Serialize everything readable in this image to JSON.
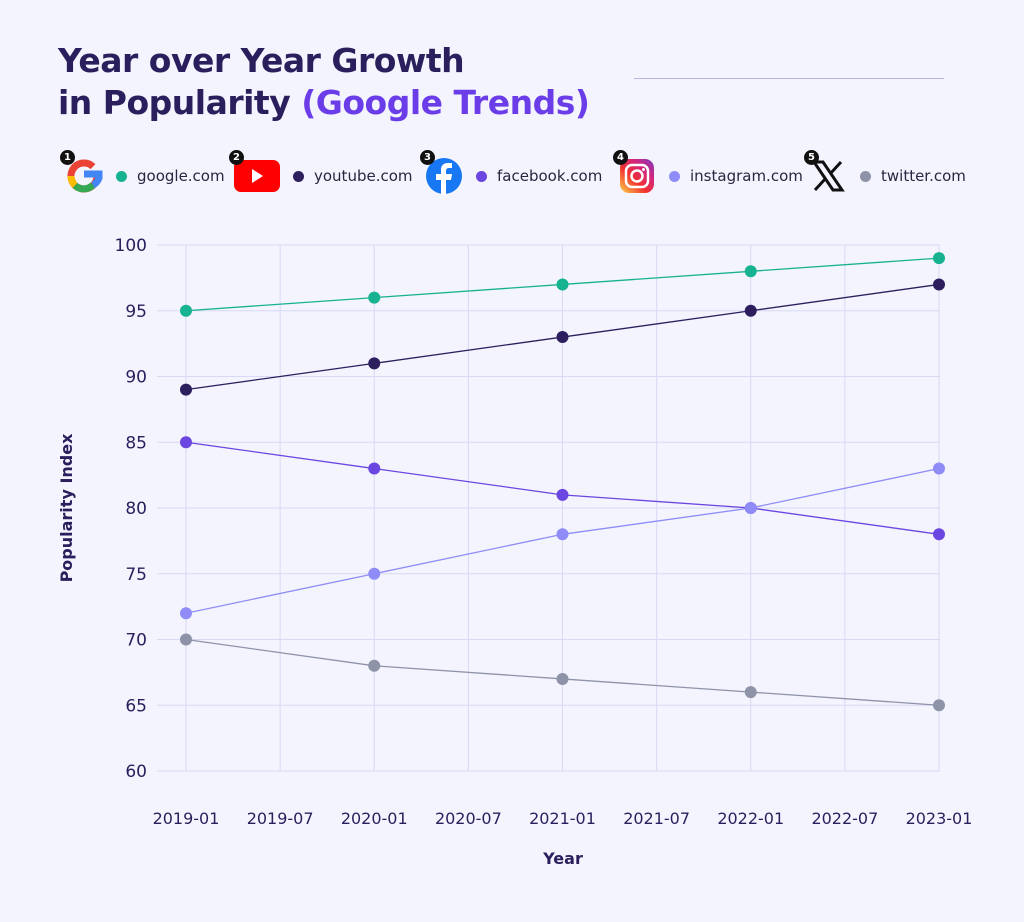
{
  "title": {
    "line1": "Year over Year Growth",
    "line2_plain": "in Popularity ",
    "line2_accent": "(Google Trends)"
  },
  "colors": {
    "title": "#2a1f5c",
    "accent": "#6a3de8",
    "background": "#f3f4fd"
  },
  "legend": [
    {
      "rank": "1",
      "icon": "google-logo-icon",
      "label": "google.com",
      "color": "#17b28f"
    },
    {
      "rank": "2",
      "icon": "youtube-logo-icon",
      "label": "youtube.com",
      "color": "#2d1f5e"
    },
    {
      "rank": "3",
      "icon": "facebook-logo-icon",
      "label": "facebook.com",
      "color": "#6b46e0"
    },
    {
      "rank": "4",
      "icon": "instagram-logo-icon",
      "label": "instagram.com",
      "color": "#8f8cf8"
    },
    {
      "rank": "5",
      "icon": "x-logo-icon",
      "label": "twitter.com",
      "color": "#8e93a8"
    }
  ],
  "chart_data": {
    "type": "line",
    "xlabel": "Year",
    "ylabel": "Popularity Index",
    "x": [
      "2019-01",
      "2020-01",
      "2021-01",
      "2022-01",
      "2023-01"
    ],
    "x_tick_labels": [
      "2019-01",
      "2019-07",
      "2020-01",
      "2020-07",
      "2021-01",
      "2021-07",
      "2022-01",
      "2022-07",
      "2023-01"
    ],
    "y_ticks": [
      60,
      65,
      70,
      75,
      80,
      85,
      90,
      95,
      100
    ],
    "ylim": [
      60,
      100
    ],
    "grid": true,
    "legend_position": "top",
    "series": [
      {
        "name": "google.com",
        "color": "#17b28f",
        "values": [
          95,
          96,
          97,
          98,
          99
        ]
      },
      {
        "name": "youtube.com",
        "color": "#2d1f5e",
        "values": [
          89,
          91,
          93,
          95,
          97
        ]
      },
      {
        "name": "facebook.com",
        "color": "#6b46e0",
        "values": [
          85,
          83,
          81,
          80,
          78
        ]
      },
      {
        "name": "instagram.com",
        "color": "#8f8cf8",
        "values": [
          72,
          75,
          78,
          80,
          83
        ]
      },
      {
        "name": "twitter.com",
        "color": "#8e93a8",
        "values": [
          70,
          68,
          67,
          66,
          65
        ]
      }
    ]
  }
}
